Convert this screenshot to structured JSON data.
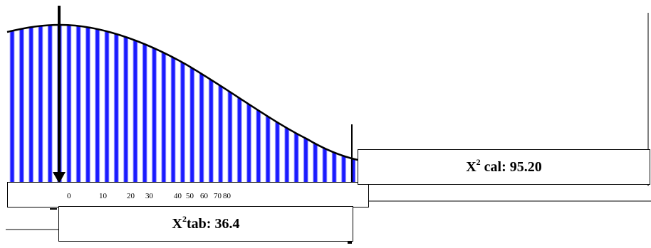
{
  "diagram": {
    "colors": {
      "stripe_blue": "#1a1aff",
      "stripe_white": "#ffffff",
      "curve": "#000000",
      "arrow": "#000000"
    },
    "critical_label": {
      "symbol": "X",
      "power": "2",
      "text": "tab: 36.4"
    },
    "calculated_label": {
      "symbol": "X",
      "power": "2",
      "text": " cal: 95.20"
    },
    "axis_ticks": [
      "0",
      "10",
      "20",
      "30",
      "40",
      "50",
      "60",
      "70",
      "80"
    ]
  }
}
